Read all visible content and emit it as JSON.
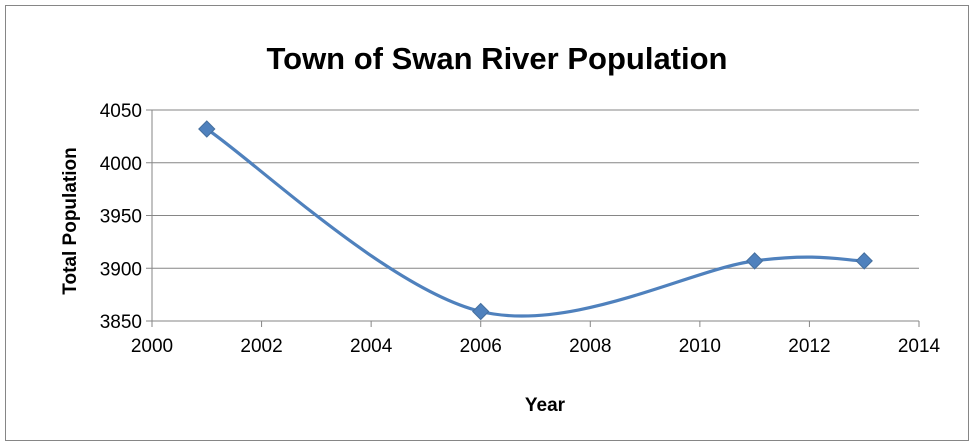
{
  "chart_data": {
    "type": "line",
    "title": "Town of Swan River Population",
    "xlabel": "Year",
    "ylabel": "Total Population",
    "xlim": [
      2000,
      2014
    ],
    "ylim": [
      3850,
      4050
    ],
    "x_ticks": [
      2000,
      2002,
      2004,
      2006,
      2008,
      2010,
      2012,
      2014
    ],
    "y_ticks": [
      3850,
      3900,
      3950,
      4000,
      4050
    ],
    "grid": "horizontal",
    "legend": "none",
    "smoothed": true,
    "marker": "diamond",
    "series": [
      {
        "color": "#4F81BD",
        "x": [
          2001,
          2006,
          2011,
          2013
        ],
        "y": [
          4032,
          3859,
          3907,
          3907
        ]
      }
    ]
  }
}
